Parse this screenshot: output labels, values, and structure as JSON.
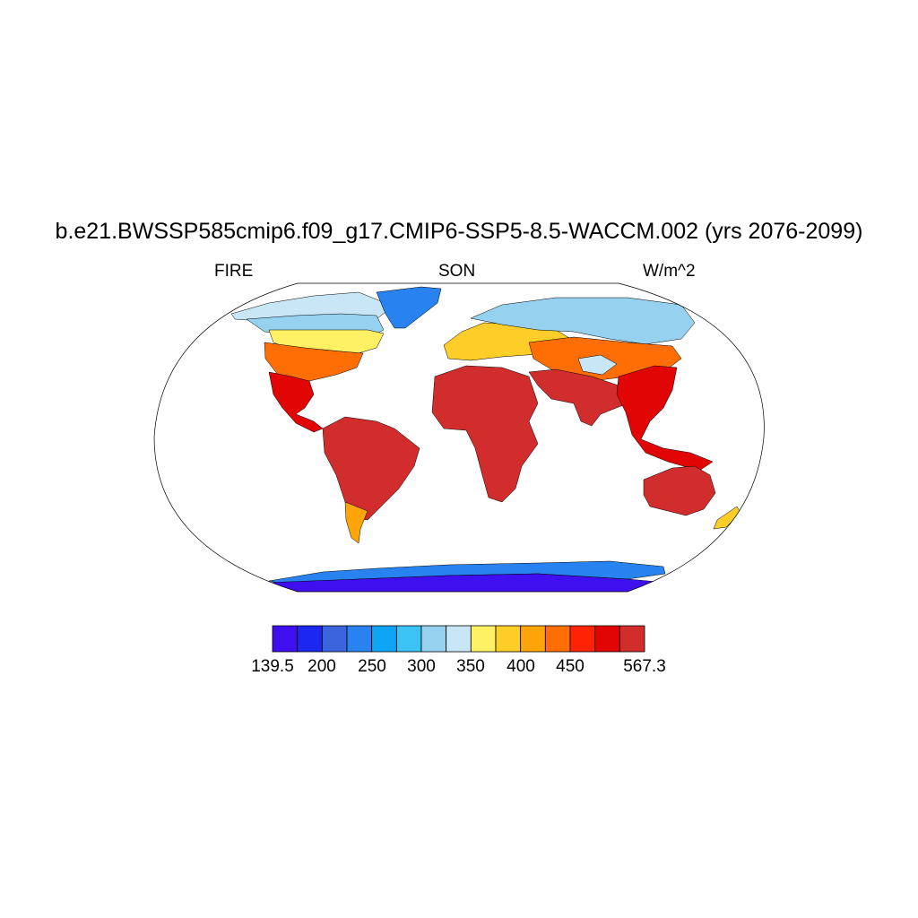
{
  "title": "b.e21.BWSSP585cmip6.f09_g17.CMIP6-SSP5-8.5-WACCM.002 (yrs 2076-2099)",
  "left_label": "FIRE",
  "center_label": "SON",
  "right_label": "W/m^2",
  "colorbar": {
    "colors": [
      "#3f0ff0",
      "#1c28f0",
      "#3c64dc",
      "#2882f0",
      "#0fa5f5",
      "#3cc3f5",
      "#96d2f0",
      "#c8e6f5",
      "#fff064",
      "#ffcd28",
      "#ffa50a",
      "#ff6e05",
      "#ff2305",
      "#e10505",
      "#d22d2d"
    ],
    "tick_labels": [
      "139.5",
      "200",
      "250",
      "300",
      "350",
      "400",
      "450",
      "567.3"
    ],
    "min": 139.5,
    "max": 567.3
  },
  "regions": {
    "arctic_north_america": "#c8e6f5",
    "canada": "#96d2f0",
    "usa_north": "#fff064",
    "usa_south": "#ff6e05",
    "mexico_central_america": "#e10505",
    "greenland": "#2882f0",
    "south_america": "#d22d2d",
    "patagonia": "#ffa50a",
    "europe": "#ffcd28",
    "siberia": "#96d2f0",
    "central_asia": "#ff6e05",
    "tibet": "#c8e6f5",
    "africa": "#d22d2d",
    "south_asia": "#d22d2d",
    "southeast_asia": "#e10505",
    "australia": "#d22d2d",
    "new_zealand": "#ffcd28",
    "antarctica": "#3f0ff0",
    "antarctic_coast": "#2882f0"
  }
}
